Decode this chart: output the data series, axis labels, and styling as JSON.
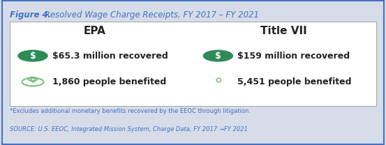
{
  "title_bold": "Figure 4.",
  "title_italic": " Resolved Wage Charge Receipts, FY 2017 – FY 2021",
  "title_color": "#4472C4",
  "bg_outer": "#D6DCE8",
  "bg_inner": "#FFFFFF",
  "border_color": "#4472C4",
  "epa_header": "EPA",
  "title7_header": "Title VII",
  "epa_money": "$65.3 million recovered",
  "epa_people": "1,860 people benefited",
  "t7_money": "$159 million recovered",
  "t7_people": "5,451 people benefited",
  "icon_money_color": "#2E8B57",
  "icon_people_color": "#7BBF7B",
  "footnote1": "*Excludes additional monetary benefits recovered by the EEOC through litigation.",
  "footnote2": "SOURCE: U.S. EEOC, Integrated Mission System, Charge Data, FY 2017 →FY 2021",
  "footnote_color": "#4472C4"
}
